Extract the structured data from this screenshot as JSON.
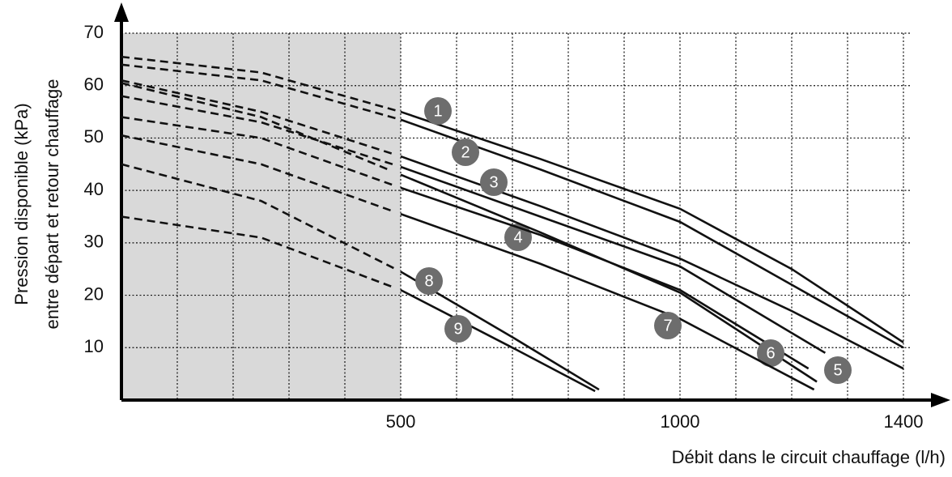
{
  "chart_data": {
    "type": "line",
    "xlabel": "Débit dans le circuit chauffage (l/h)",
    "ylabel": [
      "Pression disponible (kPa)",
      "entre départ et retour chauffage"
    ],
    "xlim": [
      0,
      1400
    ],
    "ylim": [
      0,
      70
    ],
    "xticks": [
      500,
      1000,
      1400
    ],
    "minor_xticks": [
      100,
      200,
      300,
      400,
      500,
      600,
      700,
      800,
      900,
      1000,
      1100,
      1200,
      1300,
      1400
    ],
    "yticks": [
      10,
      20,
      30,
      40,
      50,
      60,
      70
    ],
    "grid": true,
    "shaded_xlim": [
      0,
      500
    ],
    "shade_color": "#d9d9d9",
    "label_color": "#6d6d6d",
    "series": [
      {
        "name": "1",
        "color": "#111111",
        "x": [
          0,
          250,
          500,
          750,
          1000,
          1200,
          1400
        ],
        "values": [
          65.5,
          62.5,
          55,
          46,
          36.5,
          25,
          11
        ]
      },
      {
        "name": "2",
        "color": "#111111",
        "x": [
          0,
          250,
          500,
          750,
          1000,
          1200,
          1400
        ],
        "values": [
          64,
          61,
          53.5,
          44,
          34,
          22,
          10
        ]
      },
      {
        "name": "3",
        "color": "#111111",
        "x": [
          0,
          250,
          500,
          750,
          1000,
          1200,
          1400
        ],
        "values": [
          61,
          55,
          46.5,
          37,
          27,
          17,
          6
        ]
      },
      {
        "name": "4",
        "color": "#111111",
        "x": [
          0,
          250,
          500,
          750,
          1000,
          1260
        ],
        "values": [
          58,
          53,
          44.5,
          35,
          25.5,
          9
        ]
      },
      {
        "name": "5",
        "color": "#111111",
        "x": [
          0,
          250,
          500,
          750,
          1000,
          1245
        ],
        "values": [
          60.5,
          54,
          43,
          32,
          20.5,
          3.5
        ]
      },
      {
        "name": "6",
        "color": "#111111",
        "x": [
          0,
          250,
          500,
          750,
          1000,
          1230
        ],
        "values": [
          54,
          50,
          40.5,
          31.5,
          21,
          6
        ]
      },
      {
        "name": "7",
        "color": "#111111",
        "x": [
          0,
          250,
          500,
          750,
          1000,
          1240
        ],
        "values": [
          50.5,
          45,
          35.5,
          26,
          15.5,
          2
        ]
      },
      {
        "name": "8",
        "color": "#111111",
        "x": [
          0,
          250,
          500,
          700,
          855
        ],
        "values": [
          45,
          38,
          24.5,
          12,
          2
        ]
      },
      {
        "name": "9",
        "color": "#111111",
        "x": [
          0,
          250,
          500,
          700,
          848
        ],
        "values": [
          35,
          31,
          21,
          10,
          1.7
        ]
      }
    ]
  }
}
